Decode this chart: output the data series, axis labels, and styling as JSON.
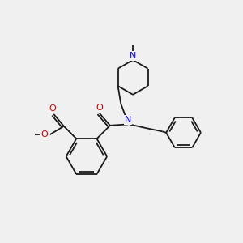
{
  "bg_color": "#f0f0f0",
  "bond_color": "#1a1a1a",
  "nitrogen_color": "#0000ee",
  "oxygen_color": "#cc0000",
  "lw": 1.3,
  "fontsize": 7.5,
  "xlim": [
    0,
    10
  ],
  "ylim": [
    0,
    10
  ]
}
